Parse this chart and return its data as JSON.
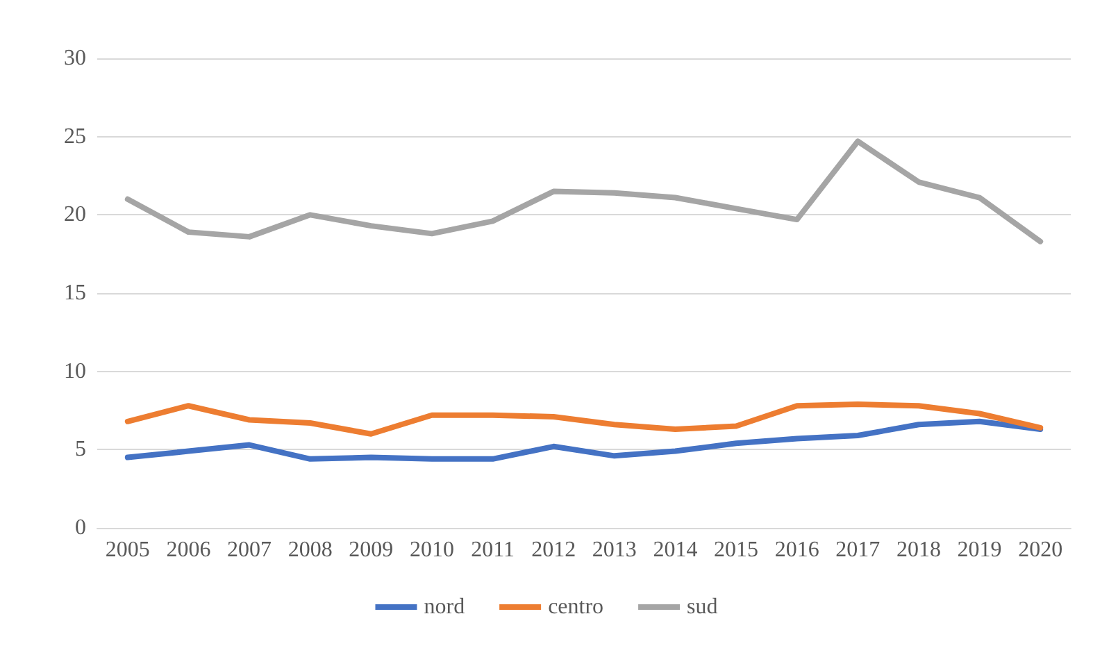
{
  "chart_data": {
    "type": "line",
    "categories": [
      "2005",
      "2006",
      "2007",
      "2008",
      "2009",
      "2010",
      "2011",
      "2012",
      "2013",
      "2014",
      "2015",
      "2016",
      "2017",
      "2018",
      "2019",
      "2020"
    ],
    "series": [
      {
        "name": "nord",
        "color": "#4472c4",
        "values": [
          4.5,
          4.9,
          5.3,
          4.4,
          4.5,
          4.4,
          4.4,
          5.2,
          4.6,
          4.9,
          5.4,
          5.7,
          5.9,
          6.6,
          6.8,
          6.3
        ]
      },
      {
        "name": "centro",
        "color": "#ed7d31",
        "values": [
          6.8,
          7.8,
          6.9,
          6.7,
          6.0,
          7.2,
          7.2,
          7.1,
          6.6,
          6.3,
          6.5,
          7.8,
          7.9,
          7.8,
          7.3,
          6.4
        ]
      },
      {
        "name": "sud",
        "color": "#a5a5a5",
        "values": [
          21.0,
          18.9,
          18.6,
          20.0,
          19.3,
          18.8,
          19.6,
          21.5,
          21.4,
          21.1,
          20.4,
          19.7,
          24.7,
          22.1,
          21.1,
          18.3
        ]
      }
    ],
    "ylim": [
      0,
      30
    ],
    "yticks": [
      0,
      5,
      10,
      15,
      20,
      25,
      30
    ],
    "grid": "y",
    "legend": "bottom",
    "marker": "none",
    "line_style": "solid"
  }
}
